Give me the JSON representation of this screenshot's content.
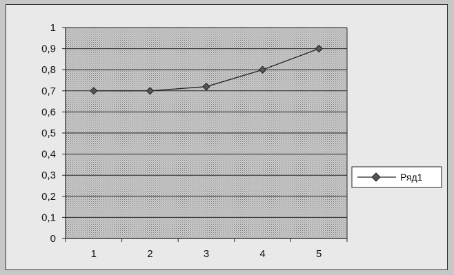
{
  "chart_data": {
    "type": "line",
    "x": [
      1,
      2,
      3,
      4,
      5
    ],
    "series": [
      {
        "name": "Ряд1",
        "values": [
          0.7,
          0.7,
          0.72,
          0.8,
          0.9
        ]
      }
    ],
    "y_ticks": [
      "0",
      "0,1",
      "0,2",
      "0,3",
      "0,4",
      "0,5",
      "0,6",
      "0,7",
      "0,8",
      "0,9",
      "1"
    ],
    "x_ticks": [
      "1",
      "2",
      "3",
      "4",
      "5"
    ],
    "ylim": [
      0,
      1
    ],
    "grid": true,
    "legend_position": "right",
    "colors": {
      "plot_background": "#c4c4c4",
      "line": "#222222",
      "marker": "#555555",
      "gridline": "#222222"
    }
  }
}
